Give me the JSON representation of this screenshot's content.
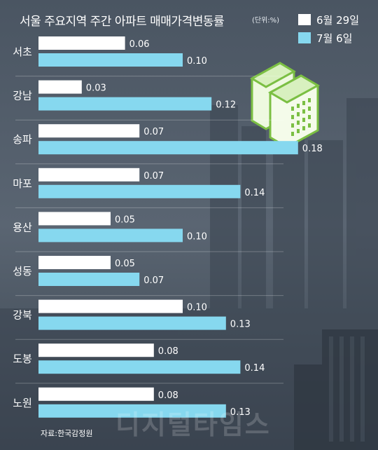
{
  "title": "서울 주요지역 주간 아파트 매매가격변동률",
  "unit": "(단위:%)",
  "source": "자료:한국감정원",
  "watermark": "디지털타임스",
  "colors": {
    "series1": "#ffffff",
    "series2": "#86d8ef",
    "background": "#4c5968",
    "text": "#ffffff"
  },
  "icon": "apartment-buildings-icon",
  "chart_data": {
    "type": "bar",
    "orientation": "horizontal",
    "categories": [
      "서초",
      "강남",
      "송파",
      "마포",
      "용산",
      "성동",
      "강북",
      "도봉",
      "노원"
    ],
    "series": [
      {
        "name": "6월 29일",
        "values": [
          0.06,
          0.03,
          0.07,
          0.07,
          0.05,
          0.05,
          0.1,
          0.08,
          0.08
        ],
        "labels": [
          "0.06",
          "0.03",
          "0.07",
          "0.07",
          "0.05",
          "0.05",
          "0.10",
          "0.08",
          "0.08"
        ]
      },
      {
        "name": "7월 6일",
        "values": [
          0.1,
          0.12,
          0.18,
          0.14,
          0.1,
          0.07,
          0.13,
          0.14,
          0.13
        ],
        "labels": [
          "0.10",
          "0.12",
          "0.18",
          "0.14",
          "0.10",
          "0.07",
          "0.13",
          "0.14",
          "0.13"
        ]
      }
    ],
    "title": "서울 주요지역 주간 아파트 매매가격변동률",
    "xlim": [
      0,
      0.18
    ],
    "grid": false,
    "legend": "top-right"
  }
}
